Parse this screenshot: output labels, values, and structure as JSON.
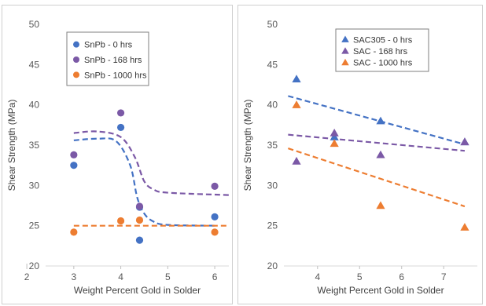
{
  "chart_data": [
    {
      "type": "scatter",
      "xlabel": "Weight Percent Gold in Solder",
      "ylabel": "Shear Strength (MPa)",
      "xlim": [
        2.4,
        6.3
      ],
      "ylim": [
        20,
        50
      ],
      "x_ticks": [
        "2",
        "3",
        "4",
        "5",
        "6"
      ],
      "y_ticks": [
        "20",
        "25",
        "30",
        "35",
        "40",
        "45",
        "50"
      ],
      "legend_position": "top-left",
      "marker": "circle",
      "series": [
        {
          "name": "SnPb - 0 hrs",
          "color": "#4472C4",
          "x": [
            3,
            4,
            4.4,
            4.4,
            6
          ],
          "y": [
            32.5,
            37.2,
            27.3,
            23.2,
            26.1
          ],
          "trend": {
            "x": [
              3,
              3.5,
              3.9,
              4.2,
              4.35,
              4.5,
              4.7,
              5,
              6
            ],
            "y": [
              35.6,
              35.8,
              35.5,
              32.5,
              28.5,
              26.5,
              25.5,
              25.1,
              25.0
            ]
          }
        },
        {
          "name": "SnPb - 168 hrs",
          "color": "#7B59A6",
          "x": [
            3,
            4,
            4.4,
            6
          ],
          "y": [
            33.8,
            39.0,
            27.4,
            29.9
          ],
          "trend": {
            "x": [
              3,
              3.5,
              4,
              4.3,
              4.5,
              4.7,
              5,
              6.3
            ],
            "y": [
              36.5,
              36.7,
              36.0,
              33.5,
              30.5,
              29.5,
              29.1,
              28.8
            ]
          }
        },
        {
          "name": "SnPb - 1000 hrs",
          "color": "#ED7D31",
          "x": [
            3,
            4,
            4.4,
            6
          ],
          "y": [
            24.2,
            25.6,
            25.7,
            24.2
          ],
          "trend": {
            "x": [
              3,
              6.3
            ],
            "y": [
              25.0,
              25.0
            ]
          }
        }
      ]
    },
    {
      "type": "scatter",
      "xlabel": "Weight Percent Gold in Solder",
      "ylabel": "Shear Strength (MPa)",
      "xlim": [
        3.2,
        7.8
      ],
      "ylim": [
        20,
        50
      ],
      "x_ticks": [
        "4",
        "5",
        "6",
        "7"
      ],
      "y_ticks": [
        "20",
        "25",
        "30",
        "35",
        "40",
        "45",
        "50"
      ],
      "legend_position": "top-center",
      "marker": "triangle",
      "series": [
        {
          "name": "SAC305 - 0 hrs",
          "color": "#4472C4",
          "x": [
            3.5,
            4.4,
            5.5,
            7.5
          ],
          "y": [
            43.2,
            36.0,
            38.0,
            35.4
          ],
          "trend": {
            "x": [
              3.3,
              7.5
            ],
            "y": [
              41.1,
              35.1
            ]
          }
        },
        {
          "name": "SAC - 168 hrs",
          "color": "#7B59A6",
          "x": [
            3.5,
            4.4,
            5.5,
            7.5
          ],
          "y": [
            33.0,
            36.5,
            33.8,
            35.4
          ],
          "trend": {
            "x": [
              3.3,
              7.5
            ],
            "y": [
              36.3,
              34.3
            ]
          }
        },
        {
          "name": "SAC - 1000 hrs",
          "color": "#ED7D31",
          "x": [
            3.5,
            4.4,
            5.5,
            7.5
          ],
          "y": [
            40.0,
            35.2,
            27.5,
            24.8
          ],
          "trend": {
            "x": [
              3.3,
              7.5
            ],
            "y": [
              34.6,
              27.4
            ]
          }
        }
      ]
    }
  ]
}
